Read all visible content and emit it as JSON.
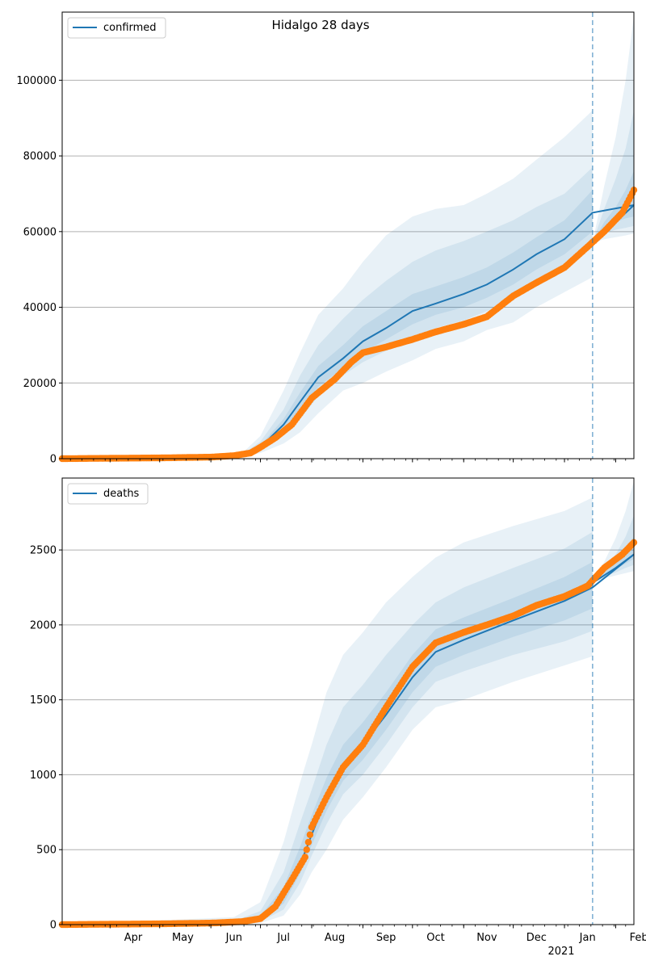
{
  "title": "Hidalgo 28 days",
  "x_axis": {
    "month_labels": [
      "Apr",
      "May",
      "Jun",
      "Jul",
      "Aug",
      "Sep",
      "Oct",
      "Nov",
      "Dec",
      "Jan",
      "Feb"
    ],
    "year_label": "2021"
  },
  "chart_data": [
    {
      "type": "line",
      "name": "confirmed-panel",
      "legend": "confirmed",
      "legend_position": "upper-left",
      "grid": "horizontal",
      "x_range": [
        "2020-03-03",
        "2021-02-12"
      ],
      "ylim": [
        0,
        118000
      ],
      "yticks": [
        0,
        20000,
        40000,
        60000,
        80000,
        100000
      ],
      "ytick_labels": [
        "0",
        "20000",
        "40000",
        "60000",
        "80000",
        "100000"
      ],
      "forecast_start": "2021-01-18",
      "model_median": {
        "x": [
          "2020-03-03",
          "2020-06-01",
          "2020-06-20",
          "2020-07-01",
          "2020-07-15",
          "2020-07-25",
          "2020-08-05",
          "2020-08-20",
          "2020-09-01",
          "2020-09-15",
          "2020-10-01",
          "2020-10-15",
          "2020-11-01",
          "2020-11-15",
          "2020-12-01",
          "2020-12-15",
          "2021-01-01",
          "2021-01-18",
          "2021-02-12"
        ],
        "y": [
          0,
          400,
          900,
          3000,
          9000,
          15000,
          21500,
          26500,
          31000,
          34500,
          39000,
          41000,
          43500,
          46000,
          50000,
          54000,
          58000,
          65000,
          67000
        ]
      },
      "bands": [
        {
          "label": "outer",
          "x": [
            "2020-03-03",
            "2020-06-01",
            "2020-06-20",
            "2020-07-01",
            "2020-07-15",
            "2020-07-25",
            "2020-08-05",
            "2020-08-20",
            "2020-09-01",
            "2020-09-15",
            "2020-10-01",
            "2020-10-15",
            "2020-11-01",
            "2020-11-15",
            "2020-12-01",
            "2020-12-15",
            "2021-01-01",
            "2021-01-18"
          ],
          "lower": [
            0,
            300,
            500,
            1500,
            4000,
            7000,
            12000,
            18000,
            20000,
            23000,
            26000,
            29000,
            31000,
            34000,
            36000,
            40000,
            44000,
            48000
          ],
          "upper": [
            0,
            500,
            1500,
            6000,
            18000,
            28000,
            38000,
            45000,
            52000,
            59000,
            64000,
            66000,
            67000,
            70000,
            74000,
            79000,
            85000,
            92000
          ]
        },
        {
          "label": "middle",
          "x": [
            "2020-03-03",
            "2020-06-01",
            "2020-06-20",
            "2020-07-01",
            "2020-07-15",
            "2020-07-25",
            "2020-08-05",
            "2020-08-20",
            "2020-09-01",
            "2020-09-15",
            "2020-10-01",
            "2020-10-15",
            "2020-11-01",
            "2020-11-15",
            "2020-12-01",
            "2020-12-15",
            "2021-01-01",
            "2021-01-18"
          ],
          "lower": [
            0,
            350,
            650,
            2200,
            6500,
            10500,
            16500,
            22000,
            25500,
            28500,
            32000,
            34500,
            36500,
            39000,
            42000,
            46000,
            50000,
            56000
          ],
          "upper": [
            0,
            450,
            1200,
            4500,
            13000,
            22000,
            30000,
            37000,
            42000,
            47000,
            52000,
            55000,
            57500,
            60000,
            63000,
            66500,
            70000,
            77000
          ]
        },
        {
          "label": "inner",
          "x": [
            "2020-03-03",
            "2020-06-01",
            "2020-06-20",
            "2020-07-01",
            "2020-07-15",
            "2020-07-25",
            "2020-08-05",
            "2020-08-20",
            "2020-09-01",
            "2020-09-15",
            "2020-10-01",
            "2020-10-15",
            "2020-11-01",
            "2020-11-15",
            "2020-12-01",
            "2020-12-15",
            "2021-01-01",
            "2021-01-18"
          ],
          "lower": [
            0,
            380,
            800,
            2700,
            7800,
            12800,
            19000,
            24000,
            28000,
            31500,
            35500,
            38000,
            40000,
            42500,
            46000,
            50000,
            54000,
            60000
          ],
          "upper": [
            0,
            420,
            1000,
            3500,
            10500,
            17500,
            24500,
            30000,
            35000,
            39000,
            43500,
            45500,
            48000,
            50500,
            54500,
            58500,
            63000,
            71000
          ]
        }
      ],
      "forecast_bands": [
        {
          "label": "outer",
          "x": [
            "2021-01-18",
            "2021-01-25",
            "2021-02-01",
            "2021-02-07",
            "2021-02-12"
          ],
          "lower": [
            57000,
            58000,
            58500,
            59000,
            59500
          ],
          "upper": [
            57000,
            72000,
            85000,
            100000,
            117000
          ]
        },
        {
          "label": "middle",
          "x": [
            "2021-01-18",
            "2021-01-25",
            "2021-02-01",
            "2021-02-07",
            "2021-02-12"
          ],
          "lower": [
            57000,
            59500,
            60500,
            61000,
            61500
          ],
          "upper": [
            57000,
            66000,
            74000,
            82000,
            92000
          ]
        },
        {
          "label": "inner",
          "x": [
            "2021-01-18",
            "2021-01-25",
            "2021-02-01",
            "2021-02-07",
            "2021-02-12"
          ],
          "lower": [
            57000,
            60500,
            62500,
            63500,
            64000
          ],
          "upper": [
            57000,
            62500,
            66500,
            71000,
            76000
          ]
        }
      ],
      "forecast_median": {
        "x": [
          "2021-01-18",
          "2021-02-01",
          "2021-02-12"
        ],
        "y": [
          57500,
          62500,
          67000
        ]
      },
      "observed": {
        "x": [
          "2020-03-03",
          "2020-05-01",
          "2020-06-01",
          "2020-06-15",
          "2020-06-25",
          "2020-07-01",
          "2020-07-10",
          "2020-07-20",
          "2020-08-01",
          "2020-08-15",
          "2020-08-25",
          "2020-09-01",
          "2020-09-15",
          "2020-10-01",
          "2020-10-15",
          "2020-11-01",
          "2020-11-15",
          "2020-12-01",
          "2020-12-15",
          "2021-01-01",
          "2021-01-15",
          "2021-01-25",
          "2021-02-05",
          "2021-02-12"
        ],
        "y": [
          0,
          200,
          400,
          800,
          1500,
          3000,
          5500,
          9000,
          16000,
          21000,
          25500,
          28000,
          29500,
          31500,
          33500,
          35500,
          37500,
          43000,
          46500,
          50500,
          56000,
          60000,
          65000,
          71000
        ]
      }
    },
    {
      "type": "line",
      "name": "deaths-panel",
      "legend": "deaths",
      "legend_position": "upper-left",
      "grid": "horizontal",
      "x_range": [
        "2020-03-03",
        "2021-02-12"
      ],
      "ylim": [
        0,
        2980
      ],
      "yticks": [
        0,
        500,
        1000,
        1500,
        2000,
        2500
      ],
      "ytick_labels": [
        "0",
        "500",
        "1000",
        "1500",
        "2000",
        "2500"
      ],
      "forecast_start": "2021-01-18",
      "model_median": {
        "x": [
          "2020-03-03",
          "2020-06-15",
          "2020-07-01",
          "2020-07-15",
          "2020-07-25",
          "2020-08-01",
          "2020-08-10",
          "2020-08-20",
          "2020-09-01",
          "2020-09-15",
          "2020-10-01",
          "2020-10-15",
          "2020-11-01",
          "2020-12-01",
          "2021-01-01",
          "2021-01-18",
          "2021-02-12"
        ],
        "y": [
          0,
          10,
          40,
          180,
          400,
          600,
          850,
          1050,
          1200,
          1400,
          1650,
          1820,
          1900,
          2030,
          2160,
          2250,
          2470
        ]
      },
      "bands": [
        {
          "label": "outer",
          "x": [
            "2020-03-03",
            "2020-06-15",
            "2020-07-01",
            "2020-07-15",
            "2020-07-25",
            "2020-08-01",
            "2020-08-10",
            "2020-08-20",
            "2020-09-01",
            "2020-09-15",
            "2020-10-01",
            "2020-10-15",
            "2020-11-01",
            "2020-12-01",
            "2021-01-01",
            "2021-01-18"
          ],
          "lower": [
            0,
            0,
            10,
            60,
            200,
            350,
            500,
            700,
            850,
            1050,
            1300,
            1450,
            1500,
            1620,
            1730,
            1790
          ],
          "upper": [
            0,
            50,
            150,
            550,
            950,
            1200,
            1550,
            1800,
            1950,
            2150,
            2320,
            2450,
            2550,
            2660,
            2760,
            2850
          ]
        },
        {
          "label": "middle",
          "x": [
            "2020-03-03",
            "2020-06-15",
            "2020-07-01",
            "2020-07-15",
            "2020-07-25",
            "2020-08-01",
            "2020-08-10",
            "2020-08-20",
            "2020-09-01",
            "2020-09-15",
            "2020-10-01",
            "2020-10-15",
            "2020-11-01",
            "2020-12-01",
            "2021-01-01",
            "2021-01-18"
          ],
          "lower": [
            0,
            5,
            20,
            100,
            280,
            460,
            670,
            870,
            1000,
            1200,
            1450,
            1620,
            1690,
            1800,
            1890,
            1960
          ],
          "upper": [
            0,
            25,
            90,
            350,
            680,
            900,
            1200,
            1450,
            1600,
            1800,
            2000,
            2150,
            2250,
            2380,
            2510,
            2620
          ]
        },
        {
          "label": "inner",
          "x": [
            "2020-03-03",
            "2020-06-15",
            "2020-07-01",
            "2020-07-15",
            "2020-07-25",
            "2020-08-01",
            "2020-08-10",
            "2020-08-20",
            "2020-09-01",
            "2020-09-15",
            "2020-10-01",
            "2020-10-15",
            "2020-11-01",
            "2020-12-01",
            "2021-01-01",
            "2021-01-18"
          ],
          "lower": [
            0,
            8,
            30,
            140,
            340,
            530,
            760,
            960,
            1100,
            1300,
            1550,
            1720,
            1800,
            1920,
            2030,
            2110
          ],
          "upper": [
            0,
            15,
            60,
            250,
            520,
            730,
            980,
            1200,
            1350,
            1550,
            1800,
            1970,
            2050,
            2180,
            2320,
            2420
          ]
        }
      ],
      "forecast_bands": [
        {
          "label": "outer",
          "x": [
            "2021-01-18",
            "2021-01-25",
            "2021-02-01",
            "2021-02-07",
            "2021-02-12"
          ],
          "lower": [
            2280,
            2310,
            2330,
            2345,
            2360
          ],
          "upper": [
            2280,
            2420,
            2580,
            2760,
            2960
          ]
        },
        {
          "label": "middle",
          "x": [
            "2021-01-18",
            "2021-01-25",
            "2021-02-01",
            "2021-02-07",
            "2021-02-12"
          ],
          "lower": [
            2280,
            2320,
            2350,
            2380,
            2400
          ],
          "upper": [
            2280,
            2380,
            2470,
            2590,
            2730
          ]
        },
        {
          "label": "inner",
          "x": [
            "2021-01-18",
            "2021-01-25",
            "2021-02-01",
            "2021-02-07",
            "2021-02-12"
          ],
          "lower": [
            2280,
            2330,
            2370,
            2410,
            2440
          ],
          "upper": [
            2280,
            2355,
            2420,
            2500,
            2590
          ]
        }
      ],
      "forecast_median": {
        "x": [
          "2021-01-18",
          "2021-02-01",
          "2021-02-12"
        ],
        "y": [
          2280,
          2380,
          2470
        ]
      },
      "observed": {
        "x": [
          "2020-03-03",
          "2020-05-01",
          "2020-06-01",
          "2020-06-20",
          "2020-07-01",
          "2020-07-10",
          "2020-07-20",
          "2020-07-28",
          "2020-08-01",
          "2020-08-10",
          "2020-08-20",
          "2020-09-01",
          "2020-09-15",
          "2020-10-01",
          "2020-10-15",
          "2020-11-01",
          "2020-11-15",
          "2020-12-01",
          "2020-12-15",
          "2021-01-01",
          "2021-01-15",
          "2021-01-25",
          "2021-02-05",
          "2021-02-12"
        ],
        "y": [
          0,
          5,
          10,
          20,
          40,
          120,
          300,
          450,
          650,
          850,
          1050,
          1200,
          1450,
          1720,
          1880,
          1950,
          2000,
          2060,
          2130,
          2190,
          2260,
          2380,
          2470,
          2550
        ]
      }
    }
  ],
  "colors": {
    "median_line": "#1f77b4",
    "observed_points": "#ff7f0e",
    "band_fill": "#1f77b4",
    "grid": "#b0b0b0",
    "forecast_line": "#1f77b4"
  }
}
